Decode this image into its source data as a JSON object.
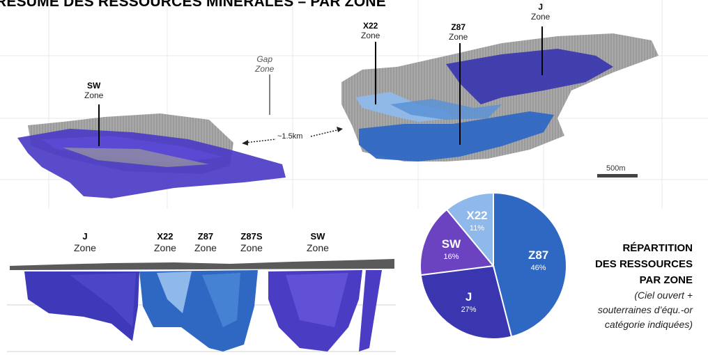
{
  "title": "RÉSUMÉ DES RESSOURCES MINÉRALES – PAR ZONE",
  "colors": {
    "z87": "#2f68c3",
    "j": "#3936b0",
    "sw": "#6b42bf",
    "x22": "#8fb9ea",
    "rock": "#a6a6a6",
    "surface": "#5a5a5a"
  },
  "plan_view": {
    "labels": [
      {
        "name": "SW",
        "zone": "Zone"
      },
      {
        "name": "X22",
        "zone": "Zone"
      },
      {
        "name": "Z87",
        "zone": "Zone"
      },
      {
        "name": "J",
        "zone": "Zone"
      }
    ],
    "gap_label": {
      "line1": "Gap",
      "line2": "Zone"
    },
    "distance": "~1.5km",
    "scale": "500m"
  },
  "section_view": {
    "labels": [
      {
        "name": "J",
        "zone": "Zone"
      },
      {
        "name": "X22",
        "zone": "Zone"
      },
      {
        "name": "Z87",
        "zone": "Zone"
      },
      {
        "name": "Z87S",
        "zone": "Zone"
      },
      {
        "name": "SW",
        "zone": "Zone"
      }
    ]
  },
  "legend": {
    "heading": [
      "RÉPARTITION",
      "DES RESSOURCES",
      "PAR ZONE"
    ],
    "subtext": [
      "(Ciel ouvert +",
      "souterraines d’équ.-or",
      "catégorie indiquées)"
    ]
  },
  "chart_data": {
    "type": "pie",
    "title": "RÉPARTITION DES RESSOURCES PAR ZONE",
    "slices": [
      {
        "label": "Z87",
        "value": 46,
        "display": "46%",
        "color": "#2f68c3"
      },
      {
        "label": "J",
        "value": 27,
        "display": "27%",
        "color": "#3936b0"
      },
      {
        "label": "SW",
        "value": 16,
        "display": "16%",
        "color": "#6b42bf"
      },
      {
        "label": "X22",
        "value": 11,
        "display": "11%",
        "color": "#8fb9ea"
      }
    ]
  }
}
